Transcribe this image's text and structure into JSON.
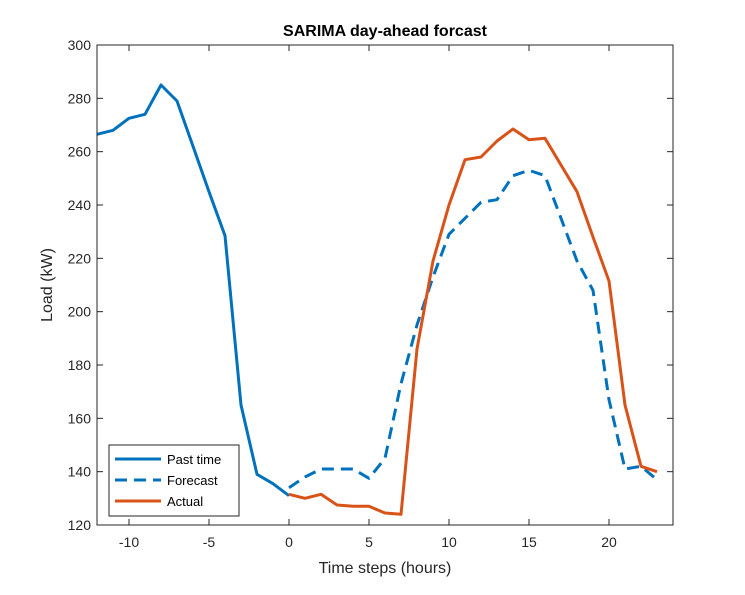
{
  "chart_data": {
    "type": "line",
    "title": "SARIMA day-ahead forcast",
    "xlabel": "Time steps (hours)",
    "ylabel": "Load (kW)",
    "xlim": [
      -12,
      24
    ],
    "ylim": [
      120,
      300
    ],
    "xticks": [
      -10,
      -5,
      0,
      5,
      10,
      15,
      20
    ],
    "yticks": [
      120,
      140,
      160,
      180,
      200,
      220,
      240,
      260,
      280,
      300
    ],
    "grid": false,
    "legend_position": "bottom-left",
    "series": [
      {
        "name": "Past time",
        "color": "#0072BD",
        "style": "solid",
        "x": [
          -12,
          -11,
          -10,
          -9,
          -8,
          -7,
          -6,
          -5,
          -4,
          -3,
          -2,
          -1,
          0
        ],
        "y": [
          266.5,
          268,
          272.5,
          274,
          285,
          279,
          262,
          245,
          228.5,
          165,
          139,
          135.5,
          131
        ]
      },
      {
        "name": "Forecast",
        "color": "#0072BD",
        "style": "dashed",
        "x": [
          0,
          1,
          2,
          3,
          4,
          5,
          6,
          7,
          8,
          9,
          10,
          11,
          12,
          13,
          14,
          15,
          16,
          17,
          18,
          19,
          20,
          21,
          22,
          23
        ],
        "y": [
          134,
          138,
          141,
          141,
          141,
          137.5,
          145,
          173,
          195,
          213,
          229,
          235,
          241,
          242,
          251,
          253,
          251,
          235,
          219,
          208,
          167,
          141,
          142,
          137
        ]
      },
      {
        "name": "Actual",
        "color": "#D95319",
        "style": "solid",
        "x": [
          0,
          1,
          2,
          3,
          4,
          5,
          6,
          7,
          8,
          9,
          10,
          11,
          12,
          13,
          14,
          15,
          16,
          17,
          18,
          19,
          20,
          21,
          22,
          23
        ],
        "y": [
          131.5,
          130,
          131.5,
          127.5,
          127,
          127,
          124.5,
          124,
          186,
          219,
          240,
          257,
          258,
          264,
          268.5,
          264.5,
          265,
          255,
          245,
          228,
          211.5,
          165,
          142,
          140
        ]
      }
    ]
  }
}
